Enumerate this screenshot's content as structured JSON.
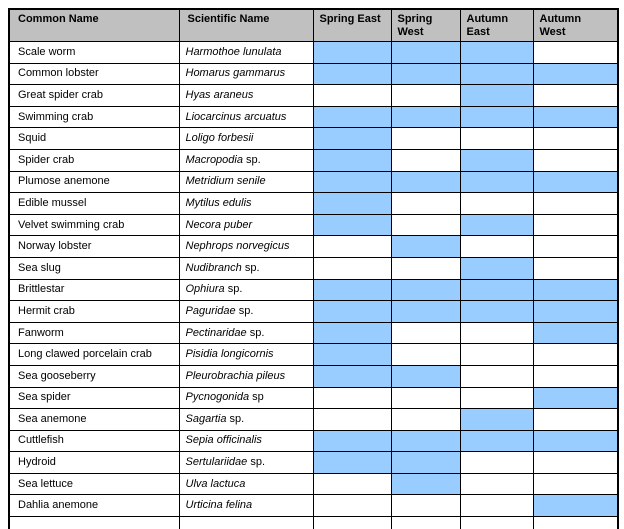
{
  "colors": {
    "header_bg": "#c0c0c0",
    "highlight": "#99ccff",
    "border": "#000000",
    "background": "#ffffff"
  },
  "table": {
    "columns": [
      "Common Name",
      "Scientific Name",
      "Spring East",
      "Spring\nWest",
      "Autumn\nEast",
      "Autumn\nWest"
    ],
    "rows": [
      {
        "common": "Scale worm",
        "sci": "Harmothoe lunulata",
        "sci_suffix": "",
        "seasons": [
          true,
          true,
          true,
          false
        ]
      },
      {
        "common": "Common lobster",
        "sci": "Homarus gammarus",
        "sci_suffix": "",
        "seasons": [
          true,
          true,
          true,
          true
        ]
      },
      {
        "common": "Great spider crab",
        "sci": "Hyas araneus",
        "sci_suffix": "",
        "seasons": [
          false,
          false,
          true,
          false
        ]
      },
      {
        "common": "Swimming crab",
        "sci": "Liocarcinus arcuatus",
        "sci_suffix": "",
        "seasons": [
          true,
          true,
          true,
          true
        ]
      },
      {
        "common": "Squid",
        "sci": "Loligo forbesii",
        "sci_suffix": "",
        "seasons": [
          true,
          false,
          false,
          false
        ]
      },
      {
        "common": "Spider crab",
        "sci": "Macropodia",
        "sci_suffix": " sp.",
        "seasons": [
          true,
          false,
          true,
          false
        ]
      },
      {
        "common": "Plumose anemone",
        "sci": "Metridium senile",
        "sci_suffix": "",
        "seasons": [
          true,
          true,
          true,
          true
        ]
      },
      {
        "common": "Edible mussel",
        "sci": "Mytilus edulis",
        "sci_suffix": "",
        "seasons": [
          true,
          false,
          false,
          false
        ]
      },
      {
        "common": "Velvet swimming crab",
        "sci": "Necora puber",
        "sci_suffix": "",
        "seasons": [
          true,
          false,
          true,
          false
        ]
      },
      {
        "common": "Norway lobster",
        "sci": "Nephrops norvegicus",
        "sci_suffix": "",
        "seasons": [
          false,
          true,
          false,
          false
        ]
      },
      {
        "common": "Sea slug",
        "sci": "Nudibranch",
        "sci_suffix": " sp.",
        "seasons": [
          false,
          false,
          true,
          false
        ]
      },
      {
        "common": "Brittlestar",
        "sci": "Ophiura",
        "sci_suffix": " sp.",
        "seasons": [
          true,
          true,
          true,
          true
        ]
      },
      {
        "common": "Hermit crab",
        "sci": "Paguridae",
        "sci_suffix": " sp.",
        "seasons": [
          true,
          true,
          true,
          true
        ]
      },
      {
        "common": "Fanworm",
        "sci": "Pectinaridae",
        "sci_suffix": " sp.",
        "seasons": [
          true,
          false,
          false,
          true
        ]
      },
      {
        "common": "Long clawed porcelain crab",
        "sci": "Pisidia longicornis",
        "sci_suffix": "",
        "seasons": [
          true,
          false,
          false,
          false
        ]
      },
      {
        "common": "Sea gooseberry",
        "sci": "Pleurobrachia pileus",
        "sci_suffix": "",
        "seasons": [
          true,
          true,
          false,
          false
        ]
      },
      {
        "common": "Sea spider",
        "sci": "Pycnogonida",
        "sci_suffix": " sp",
        "seasons": [
          false,
          false,
          false,
          true
        ]
      },
      {
        "common": "Sea anemone",
        "sci": "Sagartia",
        "sci_suffix": " sp.",
        "seasons": [
          false,
          false,
          true,
          false
        ]
      },
      {
        "common": "Cuttlefish",
        "sci": "Sepia officinalis",
        "sci_suffix": "",
        "seasons": [
          true,
          true,
          true,
          true
        ]
      },
      {
        "common": "Hydroid",
        "sci": "Sertulariidae",
        "sci_suffix": " sp.",
        "seasons": [
          true,
          true,
          false,
          false
        ]
      },
      {
        "common": "Sea lettuce",
        "sci": "Ulva lactuca",
        "sci_suffix": "",
        "seasons": [
          false,
          true,
          false,
          false
        ]
      },
      {
        "common": "Dahlia anemone",
        "sci": "Urticina felina",
        "sci_suffix": "",
        "seasons": [
          false,
          false,
          false,
          true
        ]
      }
    ]
  }
}
